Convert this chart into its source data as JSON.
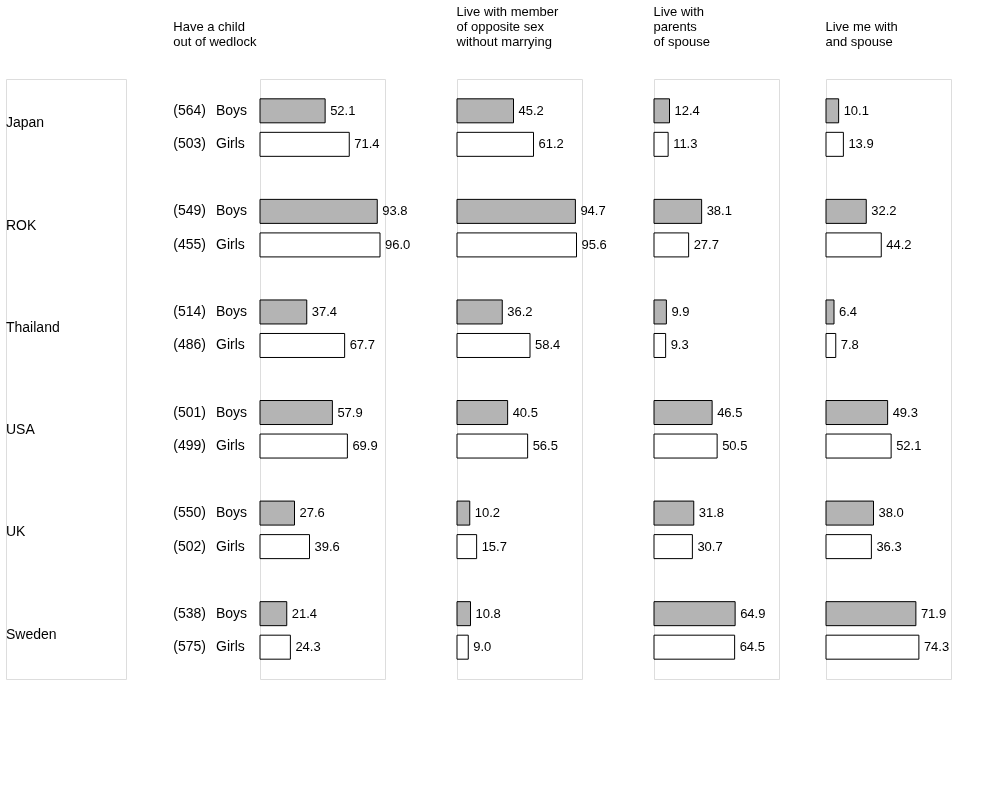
{
  "chart_data": [
    {
      "type": "bar",
      "orientation": "horizontal",
      "title": "Have a child\nout of wedlock",
      "categories": [
        "Japan",
        "ROK",
        "Thailand",
        "USA",
        "UK",
        "Sweden"
      ],
      "xlim": [
        0,
        100
      ],
      "tick_labels": false,
      "annotations": [
        "(564)",
        "(503)",
        "(549)",
        "(455)",
        "(514)",
        "(486)",
        "(501)",
        "(499)",
        "(550)",
        "(502)",
        "(538)",
        "(575)"
      ],
      "series": [
        {
          "name": "Boys",
          "color": "#b4b4b4",
          "values": [
            52.1,
            93.8,
            37.4,
            57.9,
            27.6,
            21.4
          ],
          "value_labels": [
            "52.1",
            "93.8",
            "37.4",
            "57.9",
            "27.6",
            "21.4"
          ]
        },
        {
          "name": "Girls",
          "color": "#ffffff",
          "values": [
            71.4,
            96.0,
            67.7,
            69.9,
            39.6,
            24.3
          ],
          "value_labels": [
            "71.4",
            "96.0",
            "67.7",
            "69.9",
            "39.6",
            "24.3"
          ]
        }
      ]
    },
    {
      "type": "bar",
      "orientation": "horizontal",
      "title": "Live with member\nof opposite sex\nwithout marrying",
      "xlim": [
        0,
        100
      ],
      "tick_labels": false,
      "series": [
        {
          "color": "#b4b4b4",
          "values": [
            45.2,
            94.7,
            36.2,
            40.5,
            10.2,
            10.8
          ],
          "value_labels": [
            "45.2",
            "94.7",
            "36.2",
            "40.5",
            "10.2",
            "10.8"
          ]
        },
        {
          "color": "#ffffff",
          "values": [
            61.2,
            95.6,
            58.4,
            56.5,
            15.7,
            9.0
          ],
          "value_labels": [
            "61.2",
            "95.6",
            "58.4",
            "56.5",
            "15.7",
            "9.0"
          ]
        }
      ]
    },
    {
      "type": "bar",
      "orientation": "horizontal",
      "title": "Live with\nparents\nof spouse",
      "xlim": [
        0,
        100
      ],
      "tick_labels": false,
      "series": [
        {
          "color": "#b4b4b4",
          "values": [
            12.4,
            38.1,
            9.9,
            46.5,
            31.8,
            64.9
          ],
          "value_labels": [
            "12.4",
            "38.1",
            "9.9",
            "46.5",
            "31.8",
            "64.9"
          ]
        },
        {
          "color": "#ffffff",
          "values": [
            11.3,
            27.7,
            9.3,
            50.5,
            30.7,
            64.5
          ],
          "value_labels": [
            "11.3",
            "27.7",
            "9.3",
            "50.5",
            "30.7",
            "64.5"
          ]
        }
      ]
    },
    {
      "type": "bar",
      "orientation": "horizontal",
      "title": "Live me with\nand spouse",
      "xlim": [
        0,
        100
      ],
      "tick_labels": false,
      "series": [
        {
          "color": "#b4b4b4",
          "values": [
            10.1,
            32.2,
            6.4,
            49.3,
            38.0,
            71.9
          ],
          "value_labels": [
            "10.1",
            "32.2",
            "6.4",
            "49.3",
            "38.0",
            "71.9"
          ]
        },
        {
          "color": "#ffffff",
          "values": [
            13.9,
            44.2,
            7.8,
            52.1,
            36.3,
            74.3
          ],
          "value_labels": [
            "13.9",
            "44.2",
            "7.8",
            "52.1",
            "36.3",
            "74.3"
          ]
        }
      ]
    }
  ]
}
